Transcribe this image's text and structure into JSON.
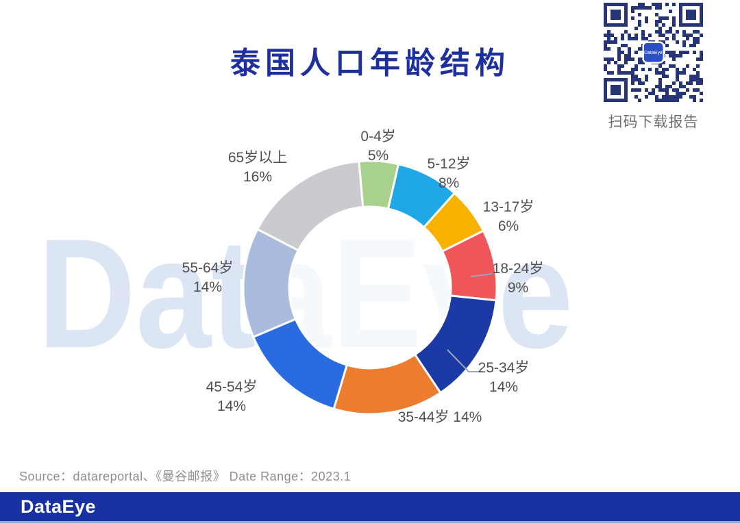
{
  "title": "泰国人口年龄结构",
  "watermark": "DataEye",
  "qr": {
    "caption": "扫码下载报告",
    "center_logo": "DataEye"
  },
  "source_line": "Source：datareportal、《曼谷邮报》 Date Range：2023.1",
  "footer": {
    "logo": "DataEye"
  },
  "colors": {
    "page_bg": "#FFFFFF",
    "title": "#1E2F9E",
    "footer_bar": "#1731A3",
    "watermark": "#DCE5F3",
    "label_text": "#4F4F4F",
    "source_text": "#8F8F8F",
    "qr_caption": "#6E6E6E",
    "leader_line": "#9AA5B5",
    "qr_module": "#263577",
    "qr_logo_bg": "#2B50C4"
  },
  "chart_data": {
    "type": "pie",
    "variant": "donut",
    "title": "泰国人口年龄结构",
    "unit": "percent",
    "start_offset_deg": -5,
    "clockwise": true,
    "legend_position": "around",
    "segments": [
      {
        "label": "0-4岁",
        "value": 5,
        "pct_label": "5%",
        "color": "#A9D18E"
      },
      {
        "label": "5-12岁",
        "value": 8,
        "pct_label": "8%",
        "color": "#1FA7E6"
      },
      {
        "label": "13-17岁",
        "value": 6,
        "pct_label": "6%",
        "color": "#F7B200"
      },
      {
        "label": "18-24岁",
        "value": 9,
        "pct_label": "9%",
        "color": "#EF5659"
      },
      {
        "label": "25-34岁",
        "value": 14,
        "pct_label": "14%",
        "color": "#1C3AA6"
      },
      {
        "label": "35-44岁",
        "value": 14,
        "pct_label": "14%",
        "color": "#EC7D2E"
      },
      {
        "label": "45-54岁",
        "value": 14,
        "pct_label": "14%",
        "color": "#2A6BE2"
      },
      {
        "label": "55-64岁",
        "value": 14,
        "pct_label": "14%",
        "color": "#A9BCDE"
      },
      {
        "label": "65岁以上",
        "value": 16,
        "pct_label": "16%",
        "color": "#C9CBCE"
      }
    ]
  }
}
